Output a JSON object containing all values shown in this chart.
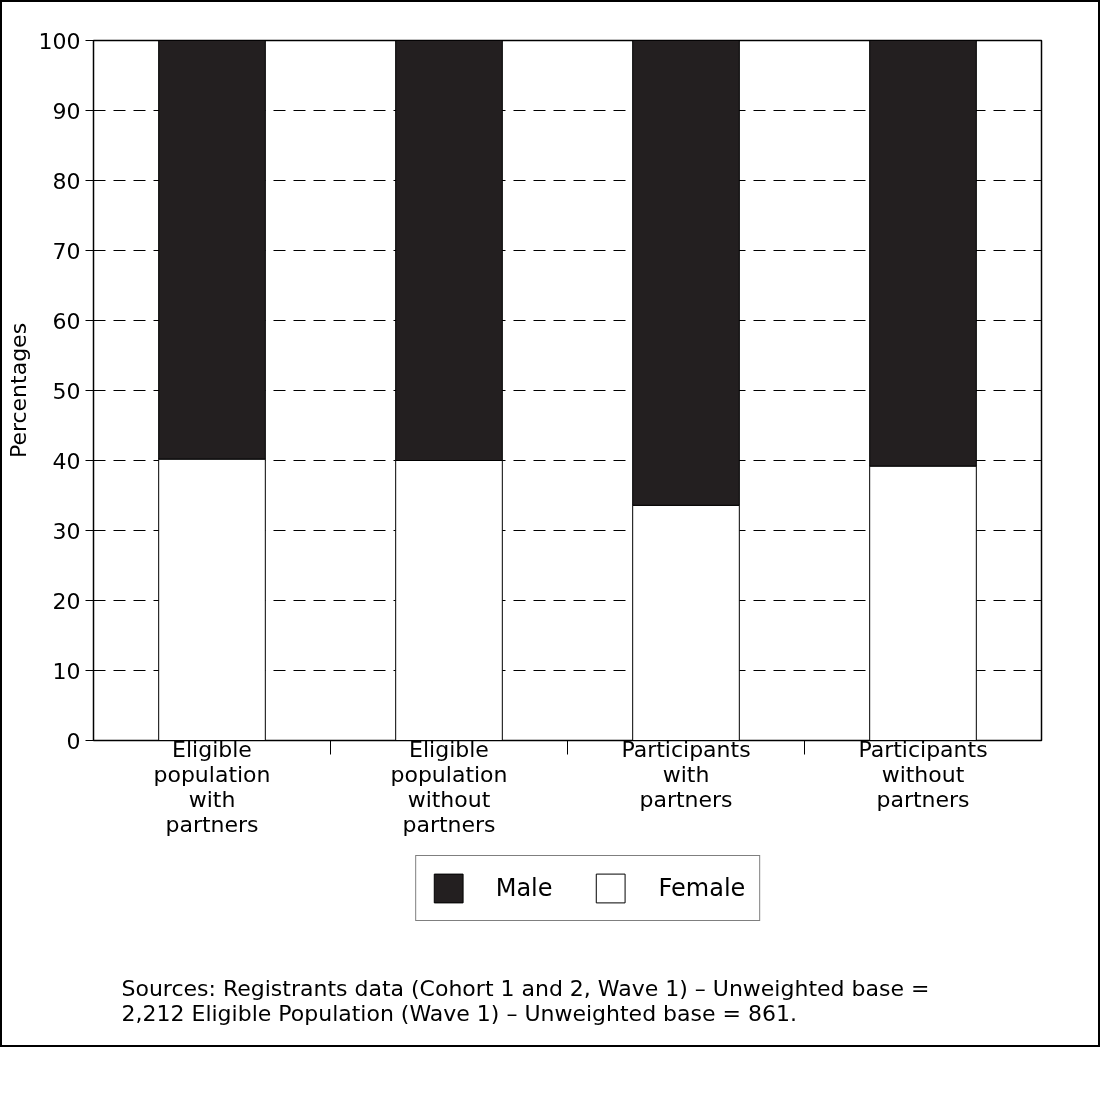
{
  "chart_data": {
    "type": "bar",
    "stacked": true,
    "ylabel": "Percentages",
    "categories": [
      "Eligible population with partners",
      "Eligible population without partners",
      "Participants with partners",
      "Participants without partners"
    ],
    "series": [
      {
        "name": "Female",
        "color": "#ffffff",
        "values": [
          40.2,
          40,
          33.6,
          39.2
        ]
      },
      {
        "name": "Male",
        "color": "#231f20",
        "values": [
          59.8,
          60,
          66.4,
          60.8
        ]
      }
    ],
    "ylim": [
      0,
      100
    ],
    "yticks": [
      0,
      10,
      20,
      30,
      40,
      50,
      60,
      70,
      80,
      90,
      100
    ],
    "grid": "y",
    "line_style": "dashed",
    "legend": "bottom",
    "annotations": [
      "Sources: Registrants data (Cohort 1 and 2, Wave 1) – Unweighted base = 2,212 Eligible Population (Wave 1) – Unweighted base = 861."
    ]
  }
}
